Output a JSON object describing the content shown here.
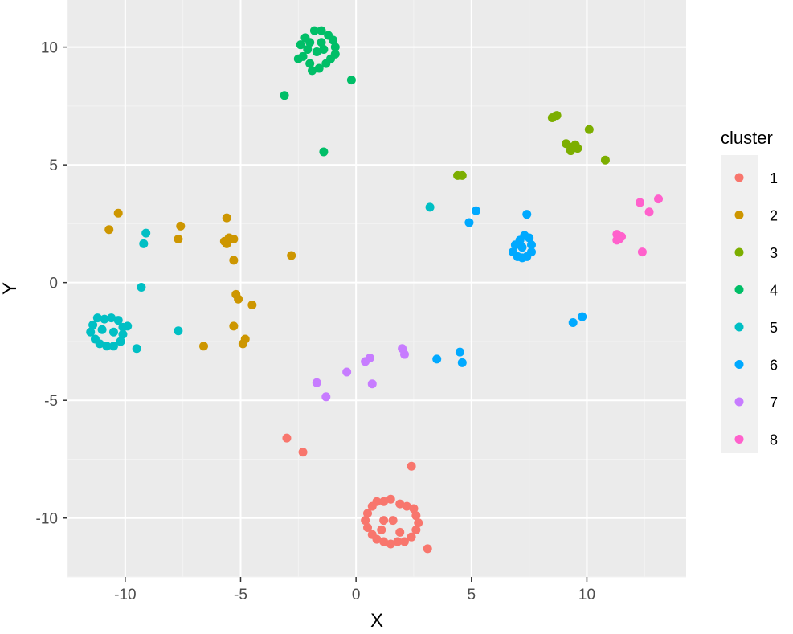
{
  "chart_data": {
    "type": "scatter",
    "title": "",
    "xlabel": "X",
    "ylabel": "Y",
    "xlim": [
      -12.5,
      14.3
    ],
    "ylim": [
      -12.5,
      12.0
    ],
    "x_ticks": [
      -10,
      -5,
      0,
      5,
      10
    ],
    "y_ticks": [
      10,
      5,
      0,
      -5,
      -10
    ],
    "x_tick_labels": [
      "-10",
      "-5",
      "0",
      "5",
      "10"
    ],
    "y_tick_labels": [
      "10",
      "5",
      "0",
      "-5",
      "-10"
    ],
    "grid": true,
    "legend": {
      "title": "cluster",
      "placement": "right"
    },
    "colors": {
      "panel_background": "#EBEBEB",
      "grid_major": "#FFFFFF",
      "grid_minor": "#F3F3F3",
      "legend_key_background": "#F0F0F0"
    },
    "series": [
      {
        "name": "1",
        "color": "#F8766D",
        "points": [
          [
            -3.0,
            -6.6
          ],
          [
            -2.3,
            -7.2
          ],
          [
            2.4,
            -7.8
          ],
          [
            3.1,
            -11.3
          ],
          [
            1.2,
            -9.3
          ],
          [
            1.5,
            -9.2
          ],
          [
            1.9,
            -9.4
          ],
          [
            2.2,
            -9.5
          ],
          [
            2.5,
            -9.6
          ],
          [
            2.6,
            -9.9
          ],
          [
            2.7,
            -10.2
          ],
          [
            2.6,
            -10.5
          ],
          [
            2.4,
            -10.8
          ],
          [
            2.1,
            -11.0
          ],
          [
            1.8,
            -11.0
          ],
          [
            1.5,
            -11.1
          ],
          [
            1.2,
            -11.0
          ],
          [
            0.9,
            -10.9
          ],
          [
            0.7,
            -10.7
          ],
          [
            0.5,
            -10.4
          ],
          [
            0.4,
            -10.1
          ],
          [
            0.5,
            -9.8
          ],
          [
            0.7,
            -9.5
          ],
          [
            0.9,
            -9.3
          ],
          [
            1.2,
            -10.1
          ],
          [
            1.6,
            -10.1
          ],
          [
            1.9,
            -10.6
          ],
          [
            1.1,
            -10.5
          ]
        ]
      },
      {
        "name": "2",
        "color": "#CD9600",
        "points": [
          [
            -10.3,
            2.95
          ],
          [
            -10.7,
            2.25
          ],
          [
            -7.6,
            2.4
          ],
          [
            -7.7,
            1.85
          ],
          [
            -5.6,
            2.75
          ],
          [
            -5.7,
            1.75
          ],
          [
            -5.5,
            1.9
          ],
          [
            -5.3,
            1.85
          ],
          [
            -5.6,
            1.65
          ],
          [
            -5.3,
            0.95
          ],
          [
            -5.2,
            -0.5
          ],
          [
            -5.1,
            -0.7
          ],
          [
            -4.5,
            -0.95
          ],
          [
            -2.8,
            1.15
          ],
          [
            -5.3,
            -1.85
          ],
          [
            -4.8,
            -2.4
          ],
          [
            -4.9,
            -2.6
          ],
          [
            -6.6,
            -2.7
          ]
        ]
      },
      {
        "name": "3",
        "color": "#7CAE00",
        "points": [
          [
            8.5,
            7.0
          ],
          [
            8.7,
            7.1
          ],
          [
            10.1,
            6.5
          ],
          [
            9.1,
            5.9
          ],
          [
            9.3,
            5.75
          ],
          [
            9.5,
            5.85
          ],
          [
            9.6,
            5.7
          ],
          [
            9.3,
            5.6
          ],
          [
            10.8,
            5.2
          ],
          [
            4.4,
            4.55
          ],
          [
            4.6,
            4.55
          ]
        ]
      },
      {
        "name": "4",
        "color": "#00BE67",
        "points": [
          [
            -2.2,
            10.4
          ],
          [
            -2.4,
            10.1
          ],
          [
            -2.1,
            9.9
          ],
          [
            -2.3,
            9.6
          ],
          [
            -2.0,
            9.3
          ],
          [
            -1.9,
            9.0
          ],
          [
            -1.6,
            9.1
          ],
          [
            -1.3,
            9.3
          ],
          [
            -1.1,
            9.5
          ],
          [
            -0.9,
            9.7
          ],
          [
            -0.9,
            10.0
          ],
          [
            -1.0,
            10.3
          ],
          [
            -1.2,
            10.5
          ],
          [
            -1.5,
            10.7
          ],
          [
            -1.8,
            10.7
          ],
          [
            -2.0,
            10.2
          ],
          [
            -1.7,
            9.8
          ],
          [
            -1.4,
            9.9
          ],
          [
            -1.5,
            10.2
          ],
          [
            -2.5,
            9.5
          ],
          [
            -0.2,
            8.6
          ],
          [
            -3.1,
            7.95
          ],
          [
            -1.4,
            5.55
          ]
        ]
      },
      {
        "name": "5",
        "color": "#00BFC4",
        "points": [
          [
            -11.2,
            -1.5
          ],
          [
            -11.4,
            -1.8
          ],
          [
            -11.5,
            -2.1
          ],
          [
            -11.3,
            -2.4
          ],
          [
            -11.1,
            -2.6
          ],
          [
            -10.8,
            -2.7
          ],
          [
            -10.5,
            -2.7
          ],
          [
            -10.2,
            -2.5
          ],
          [
            -10.1,
            -2.2
          ],
          [
            -10.1,
            -1.9
          ],
          [
            -10.3,
            -1.6
          ],
          [
            -10.6,
            -1.5
          ],
          [
            -10.9,
            -1.55
          ],
          [
            -11.0,
            -2.0
          ],
          [
            -10.5,
            -2.1
          ],
          [
            -9.9,
            -1.85
          ],
          [
            -9.5,
            -2.8
          ],
          [
            -7.7,
            -2.05
          ],
          [
            -9.3,
            -0.2
          ],
          [
            -9.2,
            1.65
          ],
          [
            -9.1,
            2.1
          ],
          [
            3.2,
            3.2
          ]
        ]
      },
      {
        "name": "6",
        "color": "#00A9FF",
        "points": [
          [
            6.8,
            1.3
          ],
          [
            6.9,
            1.6
          ],
          [
            7.1,
            1.8
          ],
          [
            7.3,
            2.0
          ],
          [
            7.5,
            1.9
          ],
          [
            7.6,
            1.6
          ],
          [
            7.6,
            1.3
          ],
          [
            7.4,
            1.1
          ],
          [
            7.2,
            1.05
          ],
          [
            7.0,
            1.1
          ],
          [
            7.2,
            1.5
          ],
          [
            7.4,
            2.9
          ],
          [
            4.9,
            2.55
          ],
          [
            5.2,
            3.05
          ],
          [
            9.4,
            -1.7
          ],
          [
            9.8,
            -1.45
          ],
          [
            3.5,
            -3.25
          ],
          [
            4.5,
            -2.95
          ],
          [
            4.6,
            -3.4
          ]
        ]
      },
      {
        "name": "7",
        "color": "#C77CFF",
        "points": [
          [
            -1.7,
            -4.25
          ],
          [
            -1.3,
            -4.85
          ],
          [
            -0.4,
            -3.8
          ],
          [
            0.4,
            -3.35
          ],
          [
            0.6,
            -3.2
          ],
          [
            0.7,
            -4.3
          ],
          [
            2.0,
            -2.8
          ],
          [
            2.1,
            -3.05
          ]
        ]
      },
      {
        "name": "8",
        "color": "#FF61CC",
        "points": [
          [
            12.3,
            3.4
          ],
          [
            13.1,
            3.55
          ],
          [
            12.7,
            3.0
          ],
          [
            11.3,
            2.05
          ],
          [
            11.4,
            1.85
          ],
          [
            11.5,
            1.95
          ],
          [
            11.3,
            1.8
          ],
          [
            12.4,
            1.3
          ]
        ]
      }
    ]
  }
}
